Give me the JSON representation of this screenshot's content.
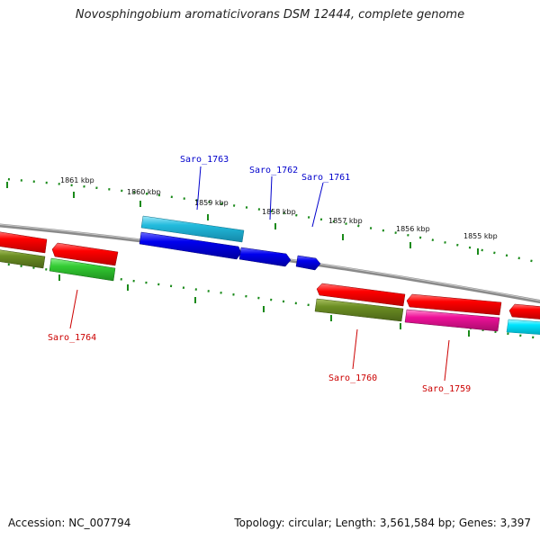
{
  "title": "Novosphingobium aromaticivorans DSM 12444, complete genome",
  "footer": {
    "accession": "Accession: NC_007794",
    "stats": "Topology: circular; Length: 3,561,584 bp; Genes: 3,397"
  },
  "scale_labels": [
    {
      "id": "1861",
      "text": "1861 kbp"
    },
    {
      "id": "1860",
      "text": "1860 kbp"
    },
    {
      "id": "1859",
      "text": "1859 kbp"
    },
    {
      "id": "1858",
      "text": "1858 kbp"
    },
    {
      "id": "1857",
      "text": "1857 kbp"
    },
    {
      "id": "1856",
      "text": "1856 kbp"
    },
    {
      "id": "1855",
      "text": "1855 kbp"
    }
  ],
  "gene_labels": [
    {
      "id": "saro-1763",
      "text": "Saro_1763",
      "color": "#0000cc"
    },
    {
      "id": "saro-1762",
      "text": "Saro_1762",
      "color": "#0000cc"
    },
    {
      "id": "saro-1761",
      "text": "Saro_1761",
      "color": "#0000cc"
    },
    {
      "id": "saro-1764",
      "text": "Saro_1764",
      "color": "#cc0000"
    },
    {
      "id": "saro-1760",
      "text": "Saro_1760",
      "color": "#cc0000"
    },
    {
      "id": "saro-1759",
      "text": "Saro_1759",
      "color": "#cc0000"
    }
  ],
  "colors": {
    "backbone": "#808080",
    "ticks": "#1a8a1a",
    "red": "#ff0000",
    "green": "#33cc33",
    "olive": "#6b8e23",
    "cyan": "#22bbdd",
    "blue": "#0000ee",
    "magenta": "#ee1199",
    "aqua": "#00e5ff"
  }
}
